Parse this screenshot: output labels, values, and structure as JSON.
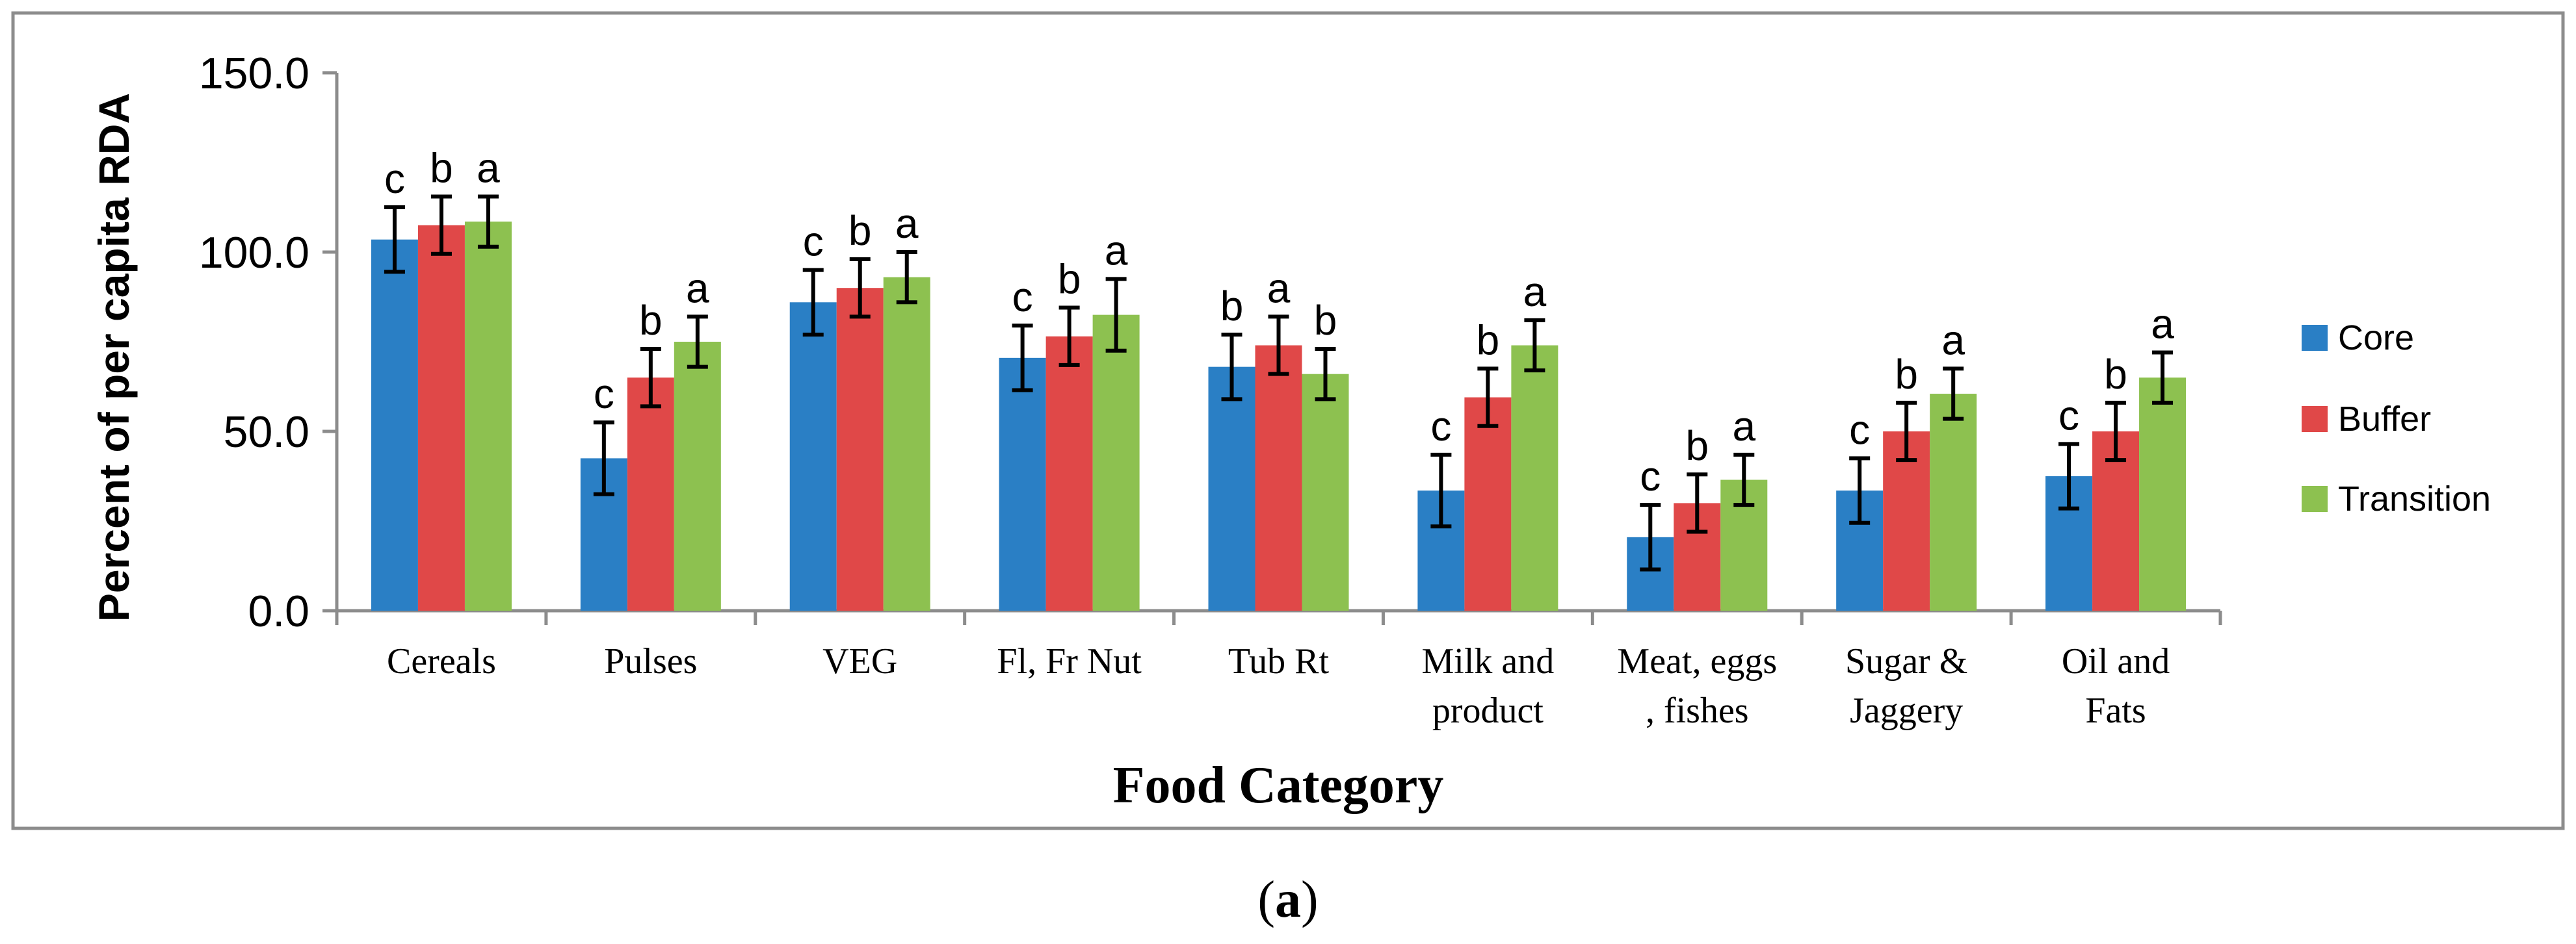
{
  "chart_data": {
    "type": "bar",
    "title": "",
    "xlabel": "Food Category",
    "ylabel": "Percent of per capita RDA",
    "ylim": [
      0,
      150
    ],
    "yticks": [
      "0.0",
      "50.0",
      "100.0",
      "150.0"
    ],
    "ytick_values": [
      0,
      50,
      100,
      150
    ],
    "categories": [
      [
        "Cereals"
      ],
      [
        "Pulses"
      ],
      [
        "VEG"
      ],
      [
        "Fl, Fr Nut"
      ],
      [
        "Tub Rt"
      ],
      [
        "Milk and",
        "product"
      ],
      [
        "Meat, eggs",
        ", fishes"
      ],
      [
        "Sugar &",
        "Jaggery"
      ],
      [
        "Oil and",
        "Fats"
      ]
    ],
    "series": [
      {
        "name": "Core",
        "color": "#2A7FC5",
        "values": [
          103.5,
          42.5,
          86,
          70.5,
          68,
          33.5,
          20.5,
          33.5,
          37.5
        ],
        "errors": [
          9,
          10,
          9,
          9,
          9,
          10,
          9,
          9,
          9
        ],
        "labels": [
          "c",
          "c",
          "c",
          "c",
          "b",
          "c",
          "c",
          "c",
          "c"
        ]
      },
      {
        "name": "Buffer",
        "color": "#E04848",
        "values": [
          107.5,
          65,
          90,
          76.5,
          74,
          59.5,
          30,
          50,
          50
        ],
        "errors": [
          8,
          8,
          8,
          8,
          8,
          8,
          8,
          8,
          8
        ],
        "labels": [
          "b",
          "b",
          "b",
          "b",
          "a",
          "b",
          "b",
          "b",
          "b"
        ]
      },
      {
        "name": "Transition",
        "color": "#8DC150",
        "values": [
          108.5,
          75,
          93,
          82.5,
          66,
          74,
          36.5,
          60.5,
          65
        ],
        "errors": [
          7,
          7,
          7,
          10,
          7,
          7,
          7,
          7,
          7
        ],
        "labels": [
          "a",
          "a",
          "a",
          "a",
          "b",
          "a",
          "a",
          "a",
          "a"
        ]
      }
    ],
    "legend": "right"
  },
  "caption": {
    "open": "(",
    "letter": "a",
    "close": ")"
  }
}
